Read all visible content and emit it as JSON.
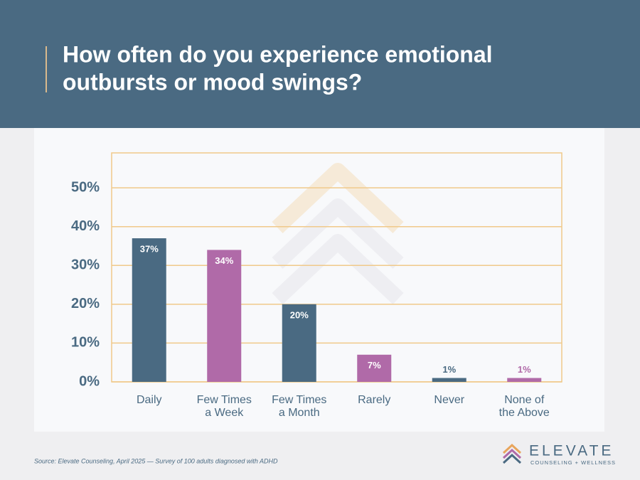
{
  "chart_data": {
    "type": "bar",
    "title": [
      "How often do you experience emotional",
      "outbursts or mood swings?"
    ],
    "categories": [
      [
        "Daily"
      ],
      [
        "Few Times",
        "a Week"
      ],
      [
        "Few Times",
        "a Month"
      ],
      [
        "Rarely"
      ],
      [
        "Never"
      ],
      [
        "None of",
        "the Above"
      ]
    ],
    "values": [
      37,
      34,
      20,
      7,
      1,
      1
    ],
    "value_labels": [
      "37%",
      "34%",
      "20%",
      "7%",
      "1%",
      "1%"
    ],
    "colors": [
      "#4a6a82",
      "#b06aa8",
      "#4a6a82",
      "#b06aa8",
      "#4a6a82",
      "#b06aa8"
    ],
    "ylim": [
      0,
      59
    ],
    "yticks": [
      {
        "value": 0,
        "label": "0%"
      },
      {
        "value": 10,
        "label": "10%"
      },
      {
        "value": 20,
        "label": "20%"
      },
      {
        "value": 30,
        "label": "30%"
      },
      {
        "value": 40,
        "label": "40%"
      },
      {
        "value": 50,
        "label": "50%"
      }
    ],
    "grid": true,
    "source": "Source: Elevate Counseling, April 2025 — Survey of 100 adults diagnosed with ADHD",
    "brand": "ELEVATE",
    "brand_sub": "COUNSELING + WELLNESS"
  }
}
